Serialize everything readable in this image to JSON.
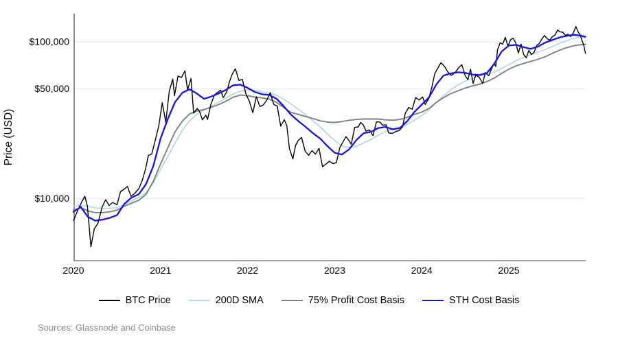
{
  "figure": {
    "title": "",
    "ylabel": "Price (USD)",
    "source_note": "Sources: Glassnode and Coinbase",
    "background": "#ffffff",
    "colors": {
      "gridline": "#e6e6e6",
      "y_axis_line": "#3c3c3c",
      "x_axis_line": "#6e6e6e",
      "tick_text": "#000000",
      "source_text": "#8a8a8a"
    }
  },
  "chart_data": {
    "type": "line",
    "unit": "kUSD",
    "grid": "horizontal-only",
    "legend_position": "bottom-center",
    "x_axis": {
      "label": "",
      "range": [
        2020.0,
        2025.9
      ],
      "ticks": [
        {
          "t": 2020,
          "label": "2020"
        },
        {
          "t": 2021,
          "label": "2021"
        },
        {
          "t": 2022,
          "label": "2022"
        },
        {
          "t": 2023,
          "label": "2023"
        },
        {
          "t": 2024,
          "label": "2024"
        },
        {
          "t": 2025,
          "label": "2025"
        }
      ]
    },
    "y_axis": {
      "label": "Price (USD)",
      "scale": "log",
      "range": [
        4000,
        150000
      ],
      "ticks": [
        {
          "value": 10000,
          "label": "$10,000"
        },
        {
          "value": 50000,
          "label": "$50,000"
        },
        {
          "value": 100000,
          "label": "$100,000"
        }
      ]
    },
    "series": [
      {
        "name": "BTC Price",
        "color": "#000000",
        "width": 1.4,
        "points": [
          [
            2020.0,
            7.2
          ],
          [
            2020.05,
            8.4
          ],
          [
            2020.1,
            9.6
          ],
          [
            2020.13,
            10.3
          ],
          [
            2020.16,
            8.9
          ],
          [
            2020.2,
            4.9
          ],
          [
            2020.24,
            6.4
          ],
          [
            2020.28,
            6.9
          ],
          [
            2020.33,
            8.8
          ],
          [
            2020.37,
            9.8
          ],
          [
            2020.41,
            9.0
          ],
          [
            2020.45,
            9.4
          ],
          [
            2020.5,
            9.1
          ],
          [
            2020.54,
            11.0
          ],
          [
            2020.58,
            11.4
          ],
          [
            2020.62,
            11.9
          ],
          [
            2020.66,
            10.3
          ],
          [
            2020.7,
            10.7
          ],
          [
            2020.75,
            11.5
          ],
          [
            2020.79,
            13.0
          ],
          [
            2020.83,
            15.5
          ],
          [
            2020.86,
            18.7
          ],
          [
            2020.9,
            19.2
          ],
          [
            2020.94,
            23.5
          ],
          [
            2020.98,
            29.0
          ],
          [
            2021.02,
            40.7
          ],
          [
            2021.06,
            30.5
          ],
          [
            2021.1,
            48.0
          ],
          [
            2021.14,
            57.5
          ],
          [
            2021.16,
            45.0
          ],
          [
            2021.2,
            60.0
          ],
          [
            2021.24,
            58.9
          ],
          [
            2021.28,
            64.8
          ],
          [
            2021.31,
            49.1
          ],
          [
            2021.35,
            58.0
          ],
          [
            2021.38,
            34.8
          ],
          [
            2021.42,
            37.3
          ],
          [
            2021.45,
            35.5
          ],
          [
            2021.48,
            31.6
          ],
          [
            2021.52,
            33.8
          ],
          [
            2021.54,
            31.8
          ],
          [
            2021.58,
            39.9
          ],
          [
            2021.62,
            45.6
          ],
          [
            2021.65,
            47.1
          ],
          [
            2021.69,
            48.8
          ],
          [
            2021.72,
            43.8
          ],
          [
            2021.76,
            47.6
          ],
          [
            2021.79,
            54.9
          ],
          [
            2021.82,
            61.3
          ],
          [
            2021.86,
            66.9
          ],
          [
            2021.9,
            56.3
          ],
          [
            2021.94,
            57.2
          ],
          [
            2021.98,
            46.2
          ],
          [
            2022.02,
            41.6
          ],
          [
            2022.06,
            35.1
          ],
          [
            2022.1,
            44.4
          ],
          [
            2022.14,
            38.4
          ],
          [
            2022.18,
            39.3
          ],
          [
            2022.22,
            42.2
          ],
          [
            2022.26,
            47.1
          ],
          [
            2022.3,
            39.7
          ],
          [
            2022.34,
            38.6
          ],
          [
            2022.38,
            28.8
          ],
          [
            2022.42,
            31.7
          ],
          [
            2022.45,
            29.0
          ],
          [
            2022.48,
            20.7
          ],
          [
            2022.52,
            17.8
          ],
          [
            2022.55,
            21.6
          ],
          [
            2022.58,
            23.3
          ],
          [
            2022.62,
            24.4
          ],
          [
            2022.66,
            20.0
          ],
          [
            2022.7,
            18.8
          ],
          [
            2022.74,
            20.1
          ],
          [
            2022.78,
            19.1
          ],
          [
            2022.82,
            20.8
          ],
          [
            2022.86,
            15.9
          ],
          [
            2022.9,
            16.5
          ],
          [
            2022.94,
            17.2
          ],
          [
            2022.98,
            16.6
          ],
          [
            2023.02,
            16.9
          ],
          [
            2023.06,
            21.1
          ],
          [
            2023.1,
            23.1
          ],
          [
            2023.13,
            24.7
          ],
          [
            2023.16,
            23.5
          ],
          [
            2023.19,
            22.1
          ],
          [
            2023.23,
            28.3
          ],
          [
            2023.27,
            28.5
          ],
          [
            2023.3,
            30.4
          ],
          [
            2023.33,
            29.3
          ],
          [
            2023.36,
            26.8
          ],
          [
            2023.4,
            27.2
          ],
          [
            2023.44,
            25.1
          ],
          [
            2023.48,
            30.7
          ],
          [
            2023.52,
            30.6
          ],
          [
            2023.55,
            29.2
          ],
          [
            2023.59,
            29.4
          ],
          [
            2023.62,
            26.1
          ],
          [
            2023.66,
            25.9
          ],
          [
            2023.7,
            26.6
          ],
          [
            2023.74,
            27.0
          ],
          [
            2023.78,
            28.5
          ],
          [
            2023.81,
            34.7
          ],
          [
            2023.85,
            37.9
          ],
          [
            2023.89,
            36.9
          ],
          [
            2023.93,
            43.8
          ],
          [
            2023.97,
            42.3
          ],
          [
            2024.01,
            44.2
          ],
          [
            2024.04,
            39.6
          ],
          [
            2024.08,
            43.1
          ],
          [
            2024.12,
            52.0
          ],
          [
            2024.15,
            62.5
          ],
          [
            2024.19,
            68.3
          ],
          [
            2024.22,
            73.1
          ],
          [
            2024.26,
            69.4
          ],
          [
            2024.3,
            63.8
          ],
          [
            2024.34,
            60.6
          ],
          [
            2024.38,
            63.0
          ],
          [
            2024.42,
            67.5
          ],
          [
            2024.46,
            71.1
          ],
          [
            2024.5,
            60.3
          ],
          [
            2024.53,
            57.0
          ],
          [
            2024.56,
            66.5
          ],
          [
            2024.59,
            54.0
          ],
          [
            2024.62,
            61.0
          ],
          [
            2024.66,
            59.0
          ],
          [
            2024.7,
            53.9
          ],
          [
            2024.73,
            63.2
          ],
          [
            2024.77,
            60.3
          ],
          [
            2024.8,
            66.6
          ],
          [
            2024.83,
            72.3
          ],
          [
            2024.85,
            69.4
          ],
          [
            2024.87,
            88.0
          ],
          [
            2024.9,
            98.0
          ],
          [
            2024.93,
            95.9
          ],
          [
            2024.96,
            106.1
          ],
          [
            2024.99,
            93.4
          ],
          [
            2025.02,
            102.3
          ],
          [
            2025.05,
            104.7
          ],
          [
            2025.08,
            97.8
          ],
          [
            2025.11,
            84.3
          ],
          [
            2025.14,
            96.1
          ],
          [
            2025.17,
            82.5
          ],
          [
            2025.2,
            78.5
          ],
          [
            2025.23,
            87.5
          ],
          [
            2025.26,
            82.4
          ],
          [
            2025.29,
            85.2
          ],
          [
            2025.32,
            94.2
          ],
          [
            2025.35,
            97.0
          ],
          [
            2025.38,
            103.7
          ],
          [
            2025.41,
            109.0
          ],
          [
            2025.44,
            104.0
          ],
          [
            2025.47,
            101.6
          ],
          [
            2025.5,
            107.1
          ],
          [
            2025.53,
            109.6
          ],
          [
            2025.56,
            118.0
          ],
          [
            2025.59,
            115.0
          ],
          [
            2025.62,
            114.3
          ],
          [
            2025.65,
            109.3
          ],
          [
            2025.68,
            110.9
          ],
          [
            2025.71,
            107.3
          ],
          [
            2025.74,
            112.5
          ],
          [
            2025.77,
            124.5
          ],
          [
            2025.8,
            113.8
          ],
          [
            2025.82,
            110.1
          ],
          [
            2025.84,
            101.5
          ],
          [
            2025.86,
            95.0
          ],
          [
            2025.88,
            84.0
          ]
        ]
      },
      {
        "name": "200D SMA",
        "color": "#aed4e5",
        "width": 1.6,
        "x_start": 2020.0,
        "x_step_months": 1,
        "values": [
          8.9,
          9.0,
          8.9,
          8.7,
          8.6,
          8.6,
          8.7,
          9.1,
          9.6,
          10.1,
          10.8,
          12.5,
          15.2,
          18.5,
          22.5,
          27.0,
          31.2,
          34.2,
          36.5,
          38.6,
          40.9,
          43.6,
          46.2,
          48.2,
          49.2,
          48.7,
          47.6,
          46.7,
          45.3,
          42.7,
          39.8,
          36.9,
          34.0,
          31.2,
          28.5,
          25.7,
          23.3,
          21.6,
          21.0,
          21.5,
          22.5,
          23.7,
          25.2,
          26.6,
          27.6,
          28.4,
          29.7,
          31.4,
          33.6,
          36.5,
          40.7,
          45.0,
          49.0,
          52.7,
          55.7,
          58.2,
          60.3,
          61.8,
          63.7,
          67.0,
          71.0,
          75.3,
          79.0,
          82.2,
          85.2,
          88.5,
          92.5,
          97.0,
          101.0,
          104.5,
          106.5,
          105.5
        ]
      },
      {
        "name": "75% Profit Cost Basis",
        "color": "#7f7f7f",
        "width": 1.9,
        "x_start": 2020.0,
        "x_step_months": 1,
        "values": [
          8.4,
          8.7,
          8.3,
          8.1,
          8.1,
          8.2,
          8.4,
          8.9,
          9.3,
          9.7,
          10.6,
          12.8,
          16.5,
          21.0,
          26.5,
          31.0,
          34.5,
          36.0,
          36.8,
          38.0,
          39.5,
          41.5,
          44.0,
          45.5,
          45.0,
          44.2,
          43.6,
          42.8,
          40.8,
          37.8,
          35.2,
          34.2,
          33.2,
          32.2,
          31.2,
          30.6,
          30.4,
          30.8,
          31.4,
          31.8,
          32.0,
          32.0,
          32.0,
          31.6,
          31.4,
          31.8,
          32.8,
          34.2,
          35.4,
          37.4,
          40.8,
          43.8,
          46.4,
          48.4,
          50.4,
          52.0,
          53.4,
          55.4,
          58.4,
          62.4,
          66.4,
          69.8,
          72.2,
          74.4,
          76.8,
          79.8,
          83.8,
          87.8,
          91.2,
          93.8,
          95.4,
          95.8
        ]
      },
      {
        "name": "STH Cost Basis",
        "color": "#1414e0",
        "width": 2.3,
        "x_start": 2020.0,
        "x_step_months": 1,
        "values": [
          8.2,
          8.8,
          7.6,
          7.2,
          7.3,
          7.5,
          7.8,
          9.2,
          10.1,
          10.6,
          12.3,
          16.0,
          24.0,
          32.0,
          41.0,
          47.0,
          49.5,
          46.5,
          43.0,
          44.5,
          46.5,
          49.0,
          52.5,
          53.0,
          50.5,
          47.5,
          46.0,
          45.5,
          43.0,
          38.5,
          34.0,
          31.0,
          28.5,
          26.0,
          24.0,
          21.5,
          19.5,
          19.0,
          20.5,
          23.5,
          26.0,
          26.5,
          28.0,
          28.5,
          27.5,
          28.0,
          31.0,
          35.5,
          39.5,
          44.0,
          53.0,
          60.5,
          62.5,
          63.5,
          63.0,
          61.5,
          61.0,
          63.0,
          72.0,
          86.0,
          94.0,
          95.0,
          92.0,
          89.5,
          92.5,
          98.0,
          102.0,
          106.0,
          108.5,
          110.0,
          108.5,
          107.0
        ]
      }
    ]
  }
}
